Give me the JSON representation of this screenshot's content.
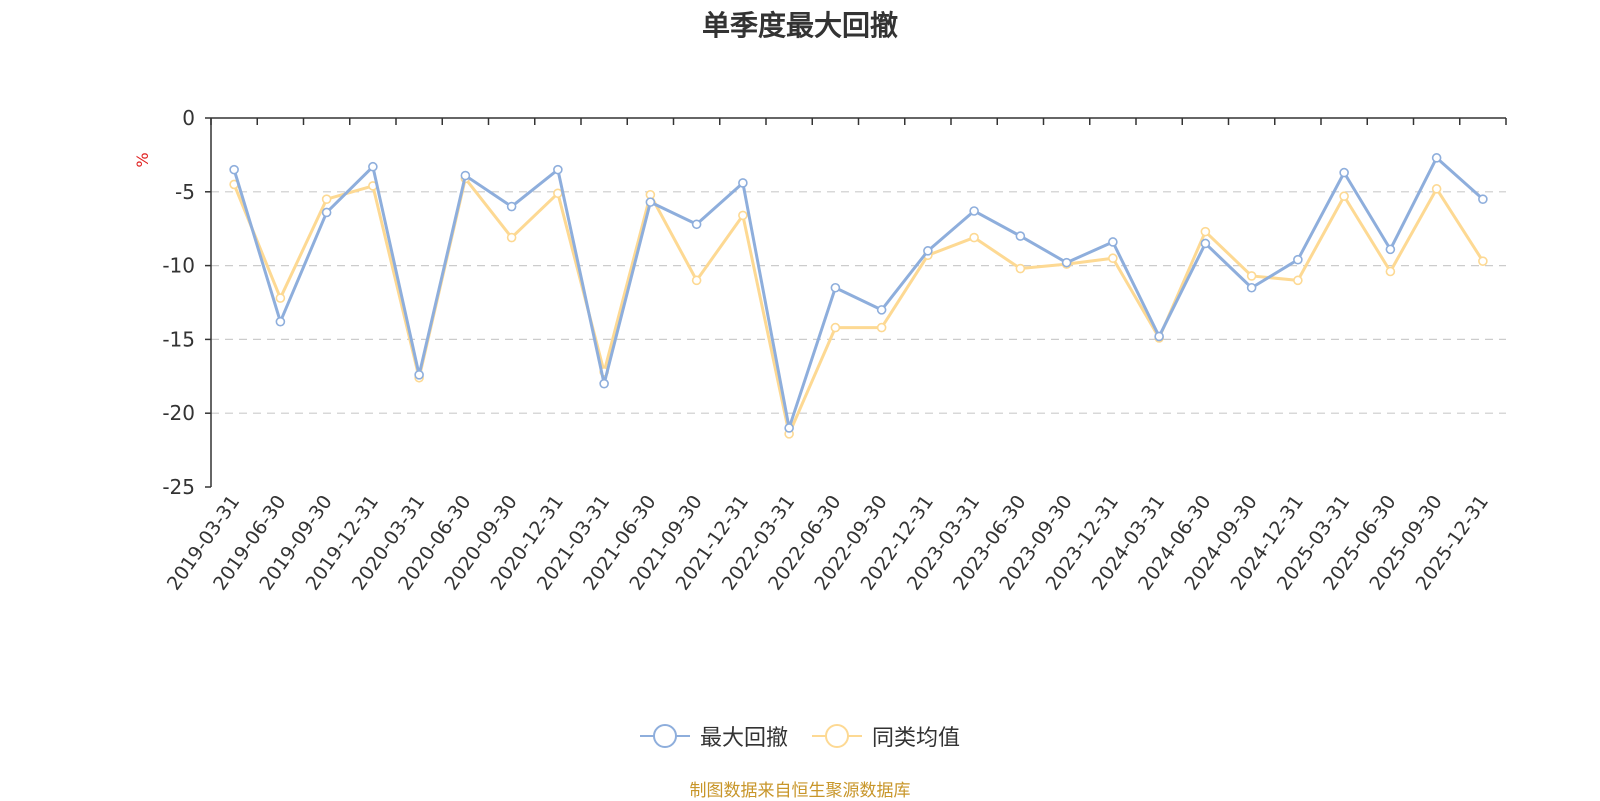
{
  "title": "单季度最大回撤",
  "source_note": "制图数据来自恒生聚源数据库",
  "colors": {
    "series1": "#8eaedc",
    "series2": "#fdd993",
    "axis": "#333333",
    "grid": "#cccccc",
    "unit": "#e02020",
    "source": "#c8962a"
  },
  "chart_data": {
    "type": "line",
    "title": "单季度最大回撤",
    "ylabel": "%",
    "ylim": [
      -25,
      0
    ],
    "yticks": [
      "0",
      "-5",
      "-10",
      "-15",
      "-20",
      "-25"
    ],
    "legend_position": "bottom",
    "grid": true,
    "categories": [
      "2019-03-31",
      "2019-06-30",
      "2019-09-30",
      "2019-12-31",
      "2020-03-31",
      "2020-06-30",
      "2020-09-30",
      "2020-12-31",
      "2021-03-31",
      "2021-06-30",
      "2021-09-30",
      "2021-12-31",
      "2022-03-31",
      "2022-06-30",
      "2022-09-30",
      "2022-12-31",
      "2023-03-31",
      "2023-06-30",
      "2023-09-30",
      "2023-12-31",
      "2024-03-31",
      "2024-06-30",
      "2024-09-30",
      "2024-12-31",
      "2025-03-31",
      "2025-06-30",
      "2025-09-30",
      "2025-12-31"
    ],
    "series": [
      {
        "name": "最大回撤",
        "values": [
          -3.5,
          -13.8,
          -6.4,
          -3.3,
          -17.4,
          -3.9,
          -6.0,
          -3.5,
          -18.0,
          -5.7,
          -7.2,
          -4.4,
          -21.0,
          -11.5,
          -13.0,
          -9.0,
          -6.3,
          -8.0,
          -9.8,
          -8.4,
          -14.8,
          -8.5,
          -11.5,
          -9.6,
          -3.7,
          -8.9,
          -2.7,
          -5.5
        ]
      },
      {
        "name": "同类均值",
        "values": [
          -4.5,
          -12.2,
          -5.5,
          -4.6,
          -17.6,
          -4.1,
          -8.1,
          -5.1,
          -17.2,
          -5.2,
          -11.0,
          -6.6,
          -21.4,
          -14.2,
          -14.2,
          -9.3,
          -8.1,
          -10.2,
          -9.9,
          -9.5,
          -14.9,
          -7.7,
          -10.7,
          -11.0,
          -5.3,
          -10.4,
          -4.8,
          -9.7
        ]
      }
    ]
  }
}
